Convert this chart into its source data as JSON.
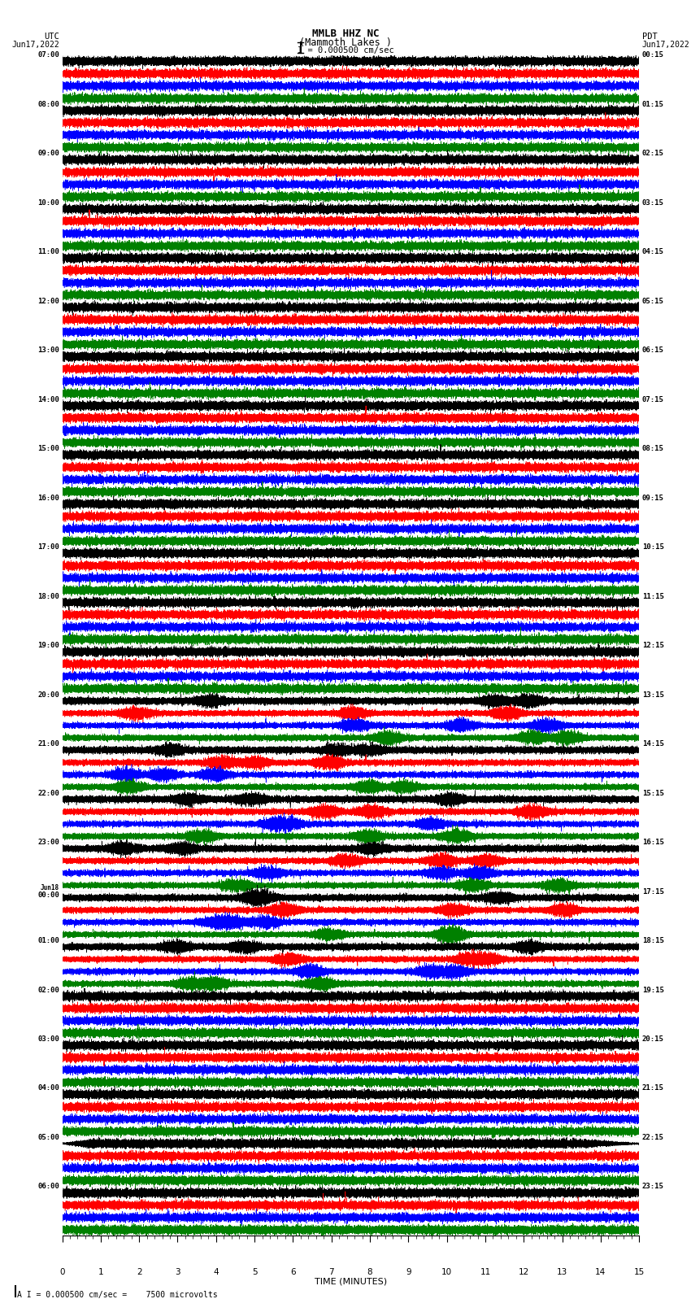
{
  "title_line1": "MMLB HHZ NC",
  "title_line2": "(Mammoth Lakes )",
  "title_line3": "I = 0.000500 cm/sec",
  "xlabel": "TIME (MINUTES)",
  "footer": "A I = 0.000500 cm/sec =    7500 microvolts",
  "utc_labels": [
    "07:00",
    "08:00",
    "09:00",
    "10:00",
    "11:00",
    "12:00",
    "13:00",
    "14:00",
    "15:00",
    "16:00",
    "17:00",
    "18:00",
    "19:00",
    "20:00",
    "21:00",
    "22:00",
    "23:00",
    "Jun18\n00:00",
    "01:00",
    "02:00",
    "03:00",
    "04:00",
    "05:00",
    "06:00"
  ],
  "pdt_labels": [
    "00:15",
    "01:15",
    "02:15",
    "03:15",
    "04:15",
    "05:15",
    "06:15",
    "07:15",
    "08:15",
    "09:15",
    "10:15",
    "11:15",
    "12:15",
    "13:15",
    "14:15",
    "15:15",
    "16:15",
    "17:15",
    "18:15",
    "19:15",
    "20:15",
    "21:15",
    "22:15",
    "23:15"
  ],
  "colors": [
    "black",
    "red",
    "blue",
    "green"
  ],
  "bg_color": "white",
  "n_rows": 24,
  "traces_per_row": 4,
  "minutes": 15,
  "sample_rate": 50,
  "noise_scale": 0.08,
  "special_row": 22,
  "special_amp": 4.0,
  "earthquake_rows": [
    13,
    14,
    15,
    16,
    17,
    18
  ],
  "eq_amp": 1.8
}
